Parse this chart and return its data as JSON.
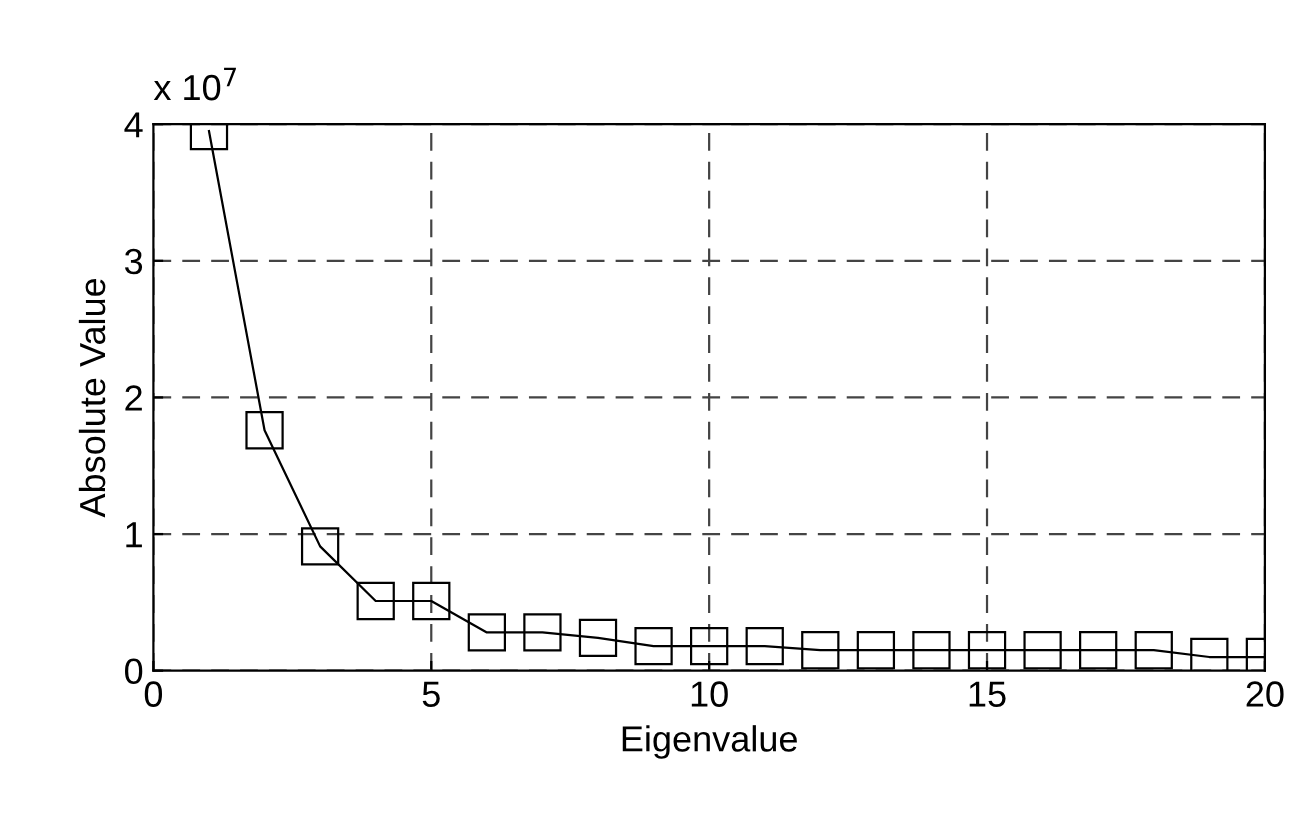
{
  "chart_data": {
    "type": "line",
    "xlabel": "Eigenvalue",
    "ylabel": "Absolute Value",
    "annotations": [
      "x 10$^{7}$"
    ],
    "x": [
      1,
      2,
      3,
      4,
      5,
      6,
      7,
      8,
      9,
      10,
      11,
      12,
      13,
      14,
      15,
      16,
      17,
      18,
      19,
      20
    ],
    "series": [
      {
        "color": "#000000",
        "values": [
          3.95,
          1.76,
          0.91,
          0.51,
          0.51,
          0.28,
          0.28,
          0.24,
          0.18,
          0.18,
          0.18,
          0.15,
          0.15,
          0.15,
          0.15,
          0.15,
          0.15,
          0.15,
          0.1,
          0.1
        ]
      }
    ],
    "xlim": [
      0,
      20
    ],
    "ylim": [
      0,
      4
    ],
    "xticks": [
      0,
      5,
      10,
      15,
      20
    ],
    "yticks": [
      0,
      1,
      2,
      3,
      4
    ],
    "grid": true,
    "marker": "square",
    "line_style": "solid",
    "legend": false
  }
}
